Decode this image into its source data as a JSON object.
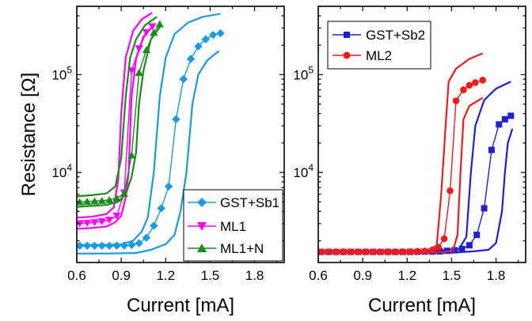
{
  "chart_data": [
    {
      "type": "line",
      "panel": "left",
      "xlabel": "Current [mA]",
      "ylabel": "Resistance [Ω]",
      "xlim": [
        0.6,
        2.0
      ],
      "ylim": [
        1200,
        500000
      ],
      "yscale": "log",
      "xticks": [
        "0.6",
        "0.9",
        "1.2",
        "1.5",
        "1.8"
      ],
      "yticks": [
        {
          "value": 10000,
          "base": "10",
          "exp": "4"
        },
        {
          "value": 100000,
          "base": "10",
          "exp": "5"
        }
      ],
      "legend_position": "bottom-right",
      "series": [
        {
          "name": "GST+Sb1",
          "color": "#1a9ae0",
          "marker": "diamond",
          "points": [
            [
              0.62,
              1780
            ],
            [
              0.67,
              1780
            ],
            [
              0.72,
              1780
            ],
            [
              0.77,
              1780
            ],
            [
              0.82,
              1780
            ],
            [
              0.87,
              1785
            ],
            [
              0.92,
              1790
            ],
            [
              0.97,
              1810
            ],
            [
              1.02,
              1890
            ],
            [
              1.07,
              2150
            ],
            [
              1.12,
              2850
            ],
            [
              1.17,
              4300
            ],
            [
              1.22,
              7200
            ],
            [
              1.27,
              35000
            ],
            [
              1.32,
              90000
            ],
            [
              1.37,
              145000
            ],
            [
              1.42,
              195000
            ],
            [
              1.47,
              230000
            ],
            [
              1.52,
              255000
            ],
            [
              1.57,
              265000
            ]
          ],
          "band_lower": [
            [
              0.6,
              1480
            ],
            [
              0.8,
              1480
            ],
            [
              1.0,
              1500
            ],
            [
              1.1,
              1620
            ],
            [
              1.2,
              1850
            ],
            [
              1.26,
              2300
            ],
            [
              1.3,
              4000
            ],
            [
              1.34,
              10000
            ],
            [
              1.38,
              50000
            ],
            [
              1.42,
              100000
            ],
            [
              1.48,
              140000
            ],
            [
              1.56,
              175000
            ]
          ],
          "band_upper": [
            [
              0.6,
              1820
            ],
            [
              0.8,
              1820
            ],
            [
              0.9,
              1840
            ],
            [
              0.98,
              2000
            ],
            [
              1.04,
              2500
            ],
            [
              1.08,
              3500
            ],
            [
              1.12,
              10000
            ],
            [
              1.16,
              60000
            ],
            [
              1.2,
              150000
            ],
            [
              1.26,
              260000
            ],
            [
              1.35,
              340000
            ],
            [
              1.45,
              390000
            ],
            [
              1.57,
              420000
            ]
          ]
        },
        {
          "name": "ML1",
          "color": "#ff00ff",
          "marker": "triangle-down",
          "points": [
            [
              0.62,
              3000
            ],
            [
              0.67,
              3030
            ],
            [
              0.72,
              3080
            ],
            [
              0.77,
              3140
            ],
            [
              0.82,
              3260
            ],
            [
              0.87,
              3600
            ],
            [
              0.92,
              6200
            ],
            [
              0.97,
              110000
            ],
            [
              1.02,
              185000
            ],
            [
              1.07,
              270000
            ],
            [
              1.11,
              310000
            ]
          ],
          "band_lower": [
            [
              0.6,
              2650
            ],
            [
              0.7,
              2700
            ],
            [
              0.8,
              2800
            ],
            [
              0.86,
              3100
            ],
            [
              0.9,
              3600
            ],
            [
              0.93,
              5600
            ],
            [
              0.95,
              10000
            ],
            [
              0.97,
              60000
            ],
            [
              1.0,
              145000
            ],
            [
              1.05,
              245000
            ],
            [
              1.12,
              320000
            ]
          ],
          "band_upper": [
            [
              0.6,
              3450
            ],
            [
              0.7,
              3520
            ],
            [
              0.8,
              3750
            ],
            [
              0.85,
              4400
            ],
            [
              0.88,
              8500
            ],
            [
              0.9,
              40000
            ],
            [
              0.93,
              150000
            ],
            [
              0.98,
              280000
            ],
            [
              1.04,
              370000
            ],
            [
              1.11,
              430000
            ]
          ]
        },
        {
          "name": "ML1+N",
          "color": "#1a8a1a",
          "marker": "triangle-up",
          "points": [
            [
              0.62,
              5000
            ],
            [
              0.67,
              5050
            ],
            [
              0.72,
              5100
            ],
            [
              0.77,
              5150
            ],
            [
              0.82,
              5250
            ],
            [
              0.87,
              5450
            ],
            [
              0.92,
              6100
            ],
            [
              0.97,
              15000
            ],
            [
              1.02,
              105000
            ],
            [
              1.07,
              180000
            ],
            [
              1.12,
              270000
            ],
            [
              1.16,
              330000
            ]
          ],
          "band_lower": [
            [
              0.6,
              4450
            ],
            [
              0.7,
              4550
            ],
            [
              0.8,
              4650
            ],
            [
              0.88,
              5000
            ],
            [
              0.93,
              6000
            ],
            [
              0.97,
              9000
            ],
            [
              1.0,
              16000
            ],
            [
              1.02,
              50000
            ],
            [
              1.05,
              110000
            ],
            [
              1.1,
              230000
            ],
            [
              1.17,
              320000
            ]
          ],
          "band_upper": [
            [
              0.6,
              5700
            ],
            [
              0.7,
              5850
            ],
            [
              0.8,
              6100
            ],
            [
              0.86,
              7200
            ],
            [
              0.9,
              14000
            ],
            [
              0.93,
              60000
            ],
            [
              0.96,
              150000
            ],
            [
              1.0,
              230000
            ],
            [
              1.06,
              320000
            ],
            [
              1.14,
              390000
            ]
          ]
        }
      ]
    },
    {
      "type": "line",
      "panel": "right",
      "xlabel": "Current [mA]",
      "ylabel": "",
      "xlim": [
        0.6,
        2.0
      ],
      "ylim": [
        1200,
        500000
      ],
      "yscale": "log",
      "xticks": [
        "0.6",
        "0.9",
        "1.2",
        "1.5",
        "1.8"
      ],
      "yticks": [
        {
          "value": 10000,
          "base": "10",
          "exp": "4"
        },
        {
          "value": 100000,
          "base": "10",
          "exp": "5"
        }
      ],
      "legend_position": "top-left",
      "series": [
        {
          "name": "GST+Sb2",
          "color": "#1f1fd6",
          "marker": "square",
          "points": [
            [
              0.62,
              1540
            ],
            [
              0.67,
              1540
            ],
            [
              0.72,
              1540
            ],
            [
              0.77,
              1540
            ],
            [
              0.82,
              1540
            ],
            [
              0.87,
              1540
            ],
            [
              0.92,
              1540
            ],
            [
              0.97,
              1540
            ],
            [
              1.02,
              1540
            ],
            [
              1.07,
              1540
            ],
            [
              1.12,
              1540
            ],
            [
              1.17,
              1540
            ],
            [
              1.22,
              1540
            ],
            [
              1.27,
              1545
            ],
            [
              1.32,
              1550
            ],
            [
              1.37,
              1550
            ],
            [
              1.42,
              1560
            ],
            [
              1.47,
              1580
            ],
            [
              1.52,
              1600
            ],
            [
              1.57,
              1650
            ],
            [
              1.62,
              1800
            ],
            [
              1.67,
              2300
            ],
            [
              1.72,
              4300
            ],
            [
              1.77,
              17000
            ],
            [
              1.82,
              31000
            ],
            [
              1.86,
              35000
            ],
            [
              1.9,
              38000
            ]
          ],
          "band_lower": [
            [
              0.6,
              1500
            ],
            [
              1.2,
              1500
            ],
            [
              1.5,
              1510
            ],
            [
              1.65,
              1560
            ],
            [
              1.75,
              1620
            ],
            [
              1.8,
              1900
            ],
            [
              1.84,
              4000
            ],
            [
              1.86,
              10000
            ],
            [
              1.88,
              20000
            ],
            [
              1.91,
              28000
            ]
          ],
          "band_upper": [
            [
              0.6,
              1580
            ],
            [
              1.2,
              1580
            ],
            [
              1.45,
              1600
            ],
            [
              1.55,
              1650
            ],
            [
              1.6,
              2200
            ],
            [
              1.63,
              10000
            ],
            [
              1.66,
              30000
            ],
            [
              1.72,
              55000
            ],
            [
              1.8,
              72000
            ],
            [
              1.9,
              85000
            ]
          ]
        },
        {
          "name": "ML2",
          "color": "#ee1c1c",
          "marker": "circle",
          "points": [
            [
              0.62,
              1540
            ],
            [
              0.67,
              1540
            ],
            [
              0.72,
              1540
            ],
            [
              0.77,
              1540
            ],
            [
              0.82,
              1540
            ],
            [
              0.87,
              1540
            ],
            [
              0.92,
              1540
            ],
            [
              0.97,
              1540
            ],
            [
              1.02,
              1540
            ],
            [
              1.07,
              1540
            ],
            [
              1.12,
              1540
            ],
            [
              1.17,
              1545
            ],
            [
              1.22,
              1550
            ],
            [
              1.27,
              1560
            ],
            [
              1.32,
              1570
            ],
            [
              1.37,
              1610
            ],
            [
              1.41,
              1720
            ],
            [
              1.45,
              2100
            ],
            [
              1.49,
              6500
            ],
            [
              1.53,
              54000
            ],
            [
              1.58,
              70000
            ],
            [
              1.62,
              78000
            ],
            [
              1.66,
              83000
            ],
            [
              1.71,
              88000
            ]
          ],
          "band_lower": [
            [
              0.6,
              1500
            ],
            [
              1.3,
              1510
            ],
            [
              1.45,
              1530
            ],
            [
              1.51,
              1600
            ],
            [
              1.54,
              2300
            ],
            [
              1.56,
              10000
            ],
            [
              1.58,
              35000
            ],
            [
              1.62,
              48000
            ],
            [
              1.71,
              58000
            ]
          ],
          "band_upper": [
            [
              0.6,
              1580
            ],
            [
              1.25,
              1580
            ],
            [
              1.35,
              1620
            ],
            [
              1.4,
              1800
            ],
            [
              1.43,
              6000
            ],
            [
              1.46,
              30000
            ],
            [
              1.48,
              85000
            ],
            [
              1.53,
              115000
            ],
            [
              1.62,
              145000
            ],
            [
              1.71,
              165000
            ]
          ]
        }
      ]
    }
  ]
}
